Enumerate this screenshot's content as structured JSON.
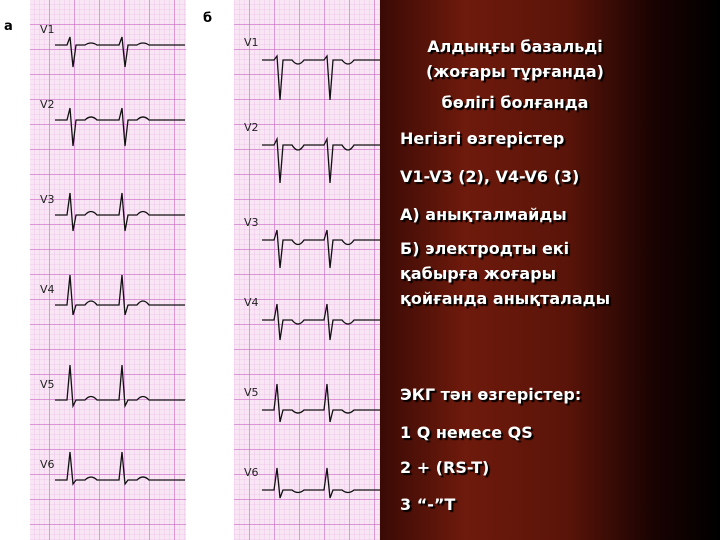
{
  "figure": {
    "panel_labels": [
      "а",
      "б"
    ],
    "left_leads": [
      "V1",
      "V2",
      "V3",
      "V4",
      "V5",
      "V6"
    ],
    "right_leads": [
      "V1",
      "V2",
      "V3",
      "V4",
      "V5",
      "V6"
    ]
  },
  "text": {
    "heading": [
      "Алдыңғы базальді (жоғары тұрғанда)",
      "бөлігі болғанда"
    ],
    "lines": [
      "Негізгі өзгерістер",
      "V1-V3 (2), V4-V6 (3)",
      "А) анықталмайды",
      "Б) электродты екі қабырға жоғары қойғанда анықталады",
      "ЭКГ тән өзгерістер:",
      "1 Q немесе QS",
      "2 + (RS-T)",
      "3 “-”T"
    ]
  }
}
